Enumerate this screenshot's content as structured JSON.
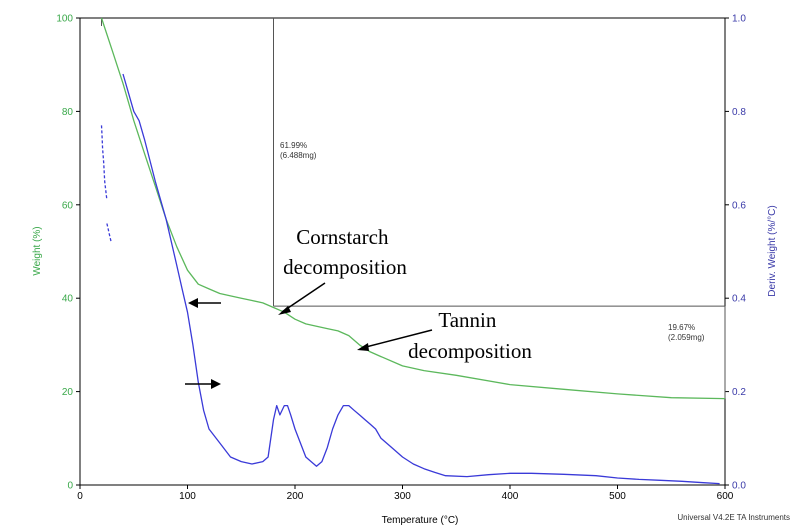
{
  "chart_data": {
    "type": "line",
    "xlabel": "Temperature (°C)",
    "ylabel_left": "Weight (%)",
    "ylabel_right": "Deriv. Weight (%/°C)",
    "xlim": [
      0,
      600
    ],
    "ylim_left": [
      0,
      100
    ],
    "ylim_right": [
      0,
      1.0
    ],
    "x_ticks": [
      "0",
      "100",
      "200",
      "300",
      "400",
      "500",
      "600"
    ],
    "y_left_ticks": [
      "0",
      "20",
      "40",
      "60",
      "80",
      "100"
    ],
    "y_right_ticks": [
      "0.0",
      "0.2",
      "0.4",
      "0.6",
      "0.8",
      "1.0"
    ],
    "series": [
      {
        "axis": "left",
        "color": "#5cb85c",
        "x": [
          20,
          30,
          40,
          50,
          60,
          70,
          80,
          90,
          100,
          110,
          120,
          130,
          140,
          150,
          160,
          170,
          180,
          190,
          200,
          210,
          220,
          230,
          240,
          250,
          260,
          270,
          280,
          300,
          320,
          350,
          400,
          450,
          500,
          550,
          600
        ],
        "y": [
          100,
          93,
          86,
          78,
          71,
          64,
          57,
          51,
          46,
          43,
          42,
          41,
          40.5,
          40,
          39.5,
          39,
          38,
          37,
          35.5,
          34.5,
          34,
          33.5,
          33,
          32,
          30,
          28.5,
          27.5,
          25.5,
          24.5,
          23.5,
          21.5,
          20.5,
          19.5,
          18.7,
          18.5
        ]
      },
      {
        "axis": "right",
        "color": "#3a3ad8",
        "x": [
          40,
          45,
          50,
          55,
          60,
          70,
          80,
          90,
          95,
          100,
          105,
          110,
          115,
          120,
          130,
          140,
          150,
          160,
          170,
          175,
          180,
          183,
          186,
          190,
          193,
          196,
          200,
          205,
          210,
          215,
          220,
          225,
          230,
          235,
          240,
          245,
          250,
          255,
          260,
          265,
          270,
          275,
          280,
          290,
          300,
          310,
          320,
          330,
          340,
          360,
          380,
          400,
          420,
          450,
          480,
          500,
          520,
          540,
          560,
          580,
          595
        ],
        "y": [
          0.88,
          0.84,
          0.8,
          0.78,
          0.74,
          0.65,
          0.57,
          0.47,
          0.42,
          0.37,
          0.3,
          0.22,
          0.16,
          0.12,
          0.09,
          0.06,
          0.05,
          0.045,
          0.05,
          0.06,
          0.14,
          0.17,
          0.15,
          0.17,
          0.17,
          0.15,
          0.12,
          0.09,
          0.06,
          0.05,
          0.04,
          0.05,
          0.08,
          0.12,
          0.15,
          0.17,
          0.17,
          0.16,
          0.15,
          0.14,
          0.13,
          0.12,
          0.1,
          0.08,
          0.06,
          0.045,
          0.035,
          0.027,
          0.02,
          0.018,
          0.022,
          0.025,
          0.025,
          0.023,
          0.02,
          0.015,
          0.012,
          0.01,
          0.008,
          0.005,
          0.003
        ]
      },
      {
        "axis": "right",
        "color": "#3a3ad8",
        "style": "dashed",
        "x": [
          20,
          20.5,
          21,
          22,
          23,
          24,
          25
        ],
        "y": [
          0.77,
          0.75,
          0.72,
          0.69,
          0.65,
          0.63,
          0.61
        ]
      },
      {
        "axis": "right",
        "color": "#3a3ad8",
        "style": "dashed",
        "x": [
          25,
          26,
          27,
          28,
          29
        ],
        "y": [
          0.56,
          0.55,
          0.54,
          0.53,
          0.52
        ]
      }
    ],
    "annotations": {
      "step1": "61.99%\n(6.488mg)",
      "step2": "19.67%\n(2.059mg)",
      "cornstarch": "Cornstarch\ndecomposition",
      "tannin": "Tannin\ndecomposition",
      "instrument": "Universal V4.2E TA Instruments"
    }
  },
  "colors": {
    "weight_axis": "#3aa84a",
    "deriv_axis": "#3a3aa8",
    "frame": "#000000"
  }
}
